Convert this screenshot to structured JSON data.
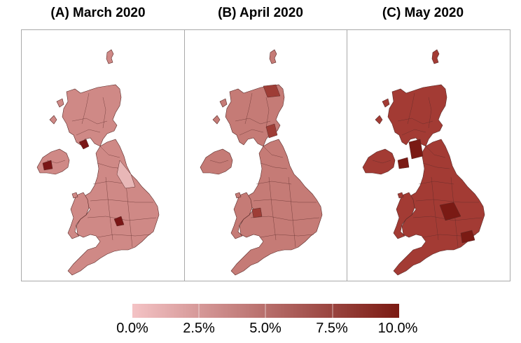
{
  "panels": [
    {
      "title": "(A) March 2020",
      "base_color": "#cf8986",
      "accent_color": "#7a1616"
    },
    {
      "title": "(B) April 2020",
      "base_color": "#c57b76",
      "accent_color": "#9e3d36"
    },
    {
      "title": "(C) May 2020",
      "base_color": "#a33b34",
      "accent_color": "#7a1a14"
    }
  ],
  "legend": {
    "ticks": [
      "0.0%",
      "2.5%",
      "5.0%",
      "7.5%",
      "10.0%"
    ],
    "color_low": "#f4c3c5",
    "color_high": "#7b1a12"
  }
}
